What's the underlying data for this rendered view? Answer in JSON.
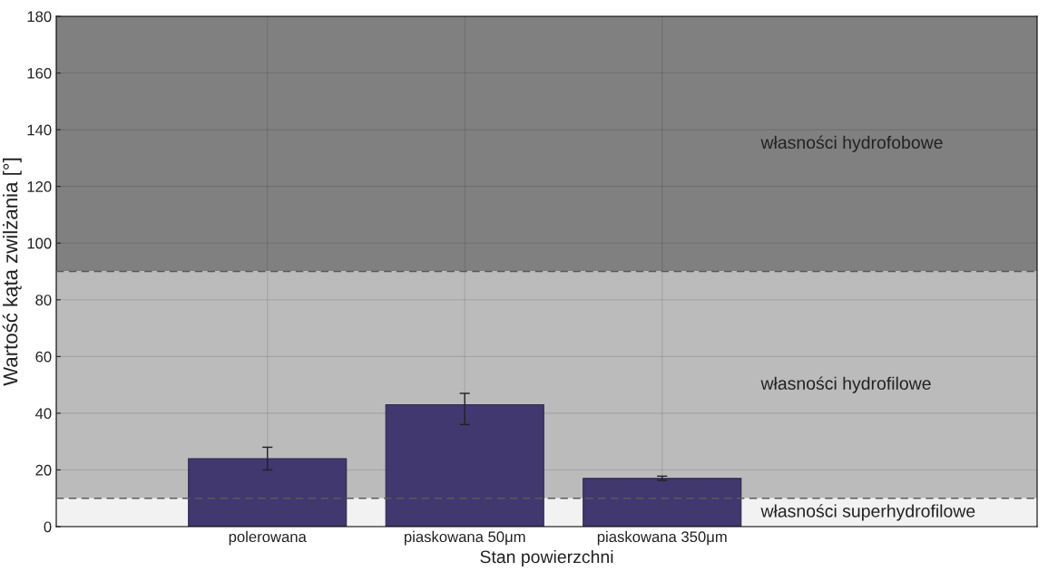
{
  "chart_data": {
    "type": "bar",
    "xlabel": "Stan powierzchni",
    "ylabel": "Wartość kąta zwilżania [°]",
    "categories": [
      "polerowana",
      "piaskowana 50μm",
      "piaskowana 350μm"
    ],
    "values": [
      24,
      43,
      17
    ],
    "color": "#413870",
    "errors": [
      [
        20,
        28
      ],
      [
        36,
        47
      ],
      [
        16.3,
        17.8
      ]
    ],
    "ylim": [
      0,
      180
    ],
    "yticks": [
      0,
      20,
      40,
      60,
      80,
      100,
      120,
      140,
      160,
      180
    ],
    "grid": true,
    "bands": [
      {
        "axis": "y",
        "from": 90,
        "to": 180,
        "label": "własności hydrofobowe",
        "color": "#808080"
      },
      {
        "axis": "y",
        "from": 10,
        "to": 90,
        "label": "własności hydrofilowe",
        "color": "#bbbbbb"
      },
      {
        "axis": "y",
        "from": 0,
        "to": 10,
        "label": "własności superhydrofilowe",
        "color": "#f2f2f2"
      }
    ],
    "ref_lines": [
      {
        "axis": "y",
        "value": 10,
        "color": "#5a5a5a",
        "line_style": "dashed"
      },
      {
        "axis": "y",
        "value": 90,
        "color": "#5a5a5a",
        "line_style": "dashed"
      }
    ]
  }
}
